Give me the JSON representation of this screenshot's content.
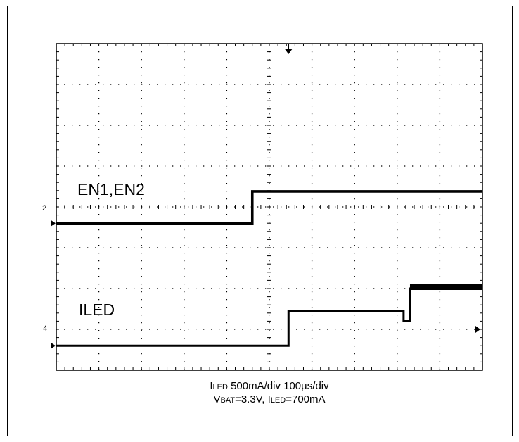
{
  "chart_data": {
    "type": "line",
    "x_divisions": 10,
    "y_divisions": 8,
    "grid": true,
    "grid_style": "dotted",
    "channels": [
      {
        "channel": "2",
        "label": "EN1,EN2",
        "ground_div": 3.6,
        "points": [
          [
            0,
            0
          ],
          [
            4.6,
            0
          ],
          [
            4.6,
            0.78
          ],
          [
            10,
            0.78
          ]
        ]
      },
      {
        "channel": "4",
        "label": "ILED",
        "ground_div": 0.6,
        "points": [
          [
            0,
            0
          ],
          [
            5.45,
            0
          ],
          [
            5.45,
            0.85
          ],
          [
            8.15,
            0.85
          ],
          [
            8.15,
            0.6
          ],
          [
            8.3,
            0.6
          ],
          [
            8.3,
            1.4
          ],
          [
            10,
            1.4
          ]
        ]
      }
    ],
    "trigger_marker_x_div": 5.45,
    "trigger_level_y_div": 1.0,
    "caption": {
      "line1": {
        "i_sub": "LED",
        "rest": " 500mA/div  100µs/div"
      },
      "line2": {
        "v_sub": "BAT",
        "v_val": "=3.3V, ",
        "i_sub": "LED",
        "i_val": "=700mA"
      }
    }
  },
  "colors": {
    "trace": "#000000",
    "grid": "#000000",
    "background": "#ffffff"
  }
}
